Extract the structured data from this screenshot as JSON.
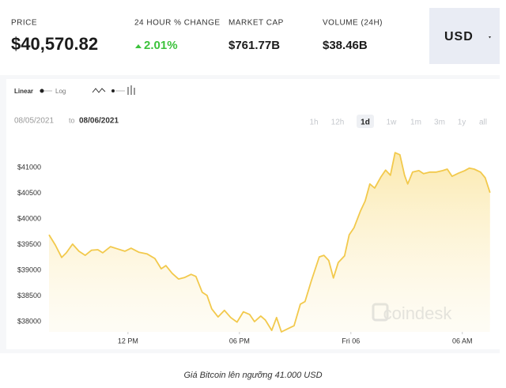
{
  "header": {
    "price_label": "PRICE",
    "price": "$40,570.82",
    "change_label": "24 HOUR % CHANGE",
    "change": "2.01%",
    "market_cap_label": "MARKET CAP",
    "market_cap": "$761.77B",
    "volume_label": "VOLUME (24H)",
    "volume": "$38.46B",
    "currency": "USD"
  },
  "controls": {
    "linear": "Linear",
    "log": "Log",
    "date_from": "08/05/2021",
    "date_to_word": "to",
    "date_to": "08/06/2021",
    "ranges": [
      "1h",
      "12h",
      "1d",
      "1w",
      "1m",
      "3m",
      "1y",
      "all"
    ],
    "active_range": "1d"
  },
  "watermark": "coindesk",
  "caption": "Giá Bitcoin lên ngưỡng 41.000 USD",
  "chart_data": {
    "type": "area",
    "color": "#f2c94c",
    "x": [
      7.75,
      8.09,
      8.43,
      8.68,
      9.02,
      9.36,
      9.7,
      10.04,
      10.38,
      10.64,
      11.06,
      11.4,
      11.83,
      12.17,
      12.6,
      13.02,
      13.45,
      13.79,
      14.04,
      14.38,
      14.72,
      15.06,
      15.4,
      15.66,
      16.0,
      16.26,
      16.51,
      16.85,
      17.19,
      17.53,
      17.87,
      18.21,
      18.55,
      18.81,
      19.15,
      19.4,
      19.74,
      20.0,
      20.26,
      20.6,
      20.94,
      21.28,
      21.53,
      21.87,
      22.3,
      22.55,
      22.81,
      23.06,
      23.32,
      23.66,
      23.91,
      24.17,
      24.51,
      24.77,
      25.02,
      25.28,
      25.62,
      25.87,
      26.13,
      26.38,
      26.64,
      26.89,
      27.06,
      27.32,
      27.66,
      27.91,
      28.26,
      28.6,
      28.94,
      29.19,
      29.45,
      29.79,
      30.13,
      30.38,
      30.64,
      30.98,
      31.23,
      31.49
    ],
    "values": [
      39690,
      39490,
      39250,
      39340,
      39510,
      39370,
      39290,
      39390,
      39400,
      39340,
      39460,
      39420,
      39370,
      39430,
      39350,
      39320,
      39230,
      39030,
      39090,
      38940,
      38830,
      38860,
      38920,
      38880,
      38570,
      38510,
      38250,
      38090,
      38220,
      38080,
      37990,
      38190,
      38140,
      38000,
      38110,
      38030,
      37830,
      38080,
      37800,
      37860,
      37920,
      38340,
      38390,
      38790,
      39260,
      39290,
      39190,
      38850,
      39150,
      39280,
      39690,
      39830,
      40150,
      40350,
      40680,
      40600,
      40820,
      40950,
      40850,
      41290,
      41250,
      40850,
      40680,
      40910,
      40940,
      40880,
      40910,
      40910,
      40940,
      40970,
      40830,
      40890,
      40940,
      40990,
      40970,
      40910,
      40800,
      40510
    ],
    "xlim": [
      7.75,
      31.5
    ],
    "xticks": [
      {
        "value": 12,
        "label": "12 PM"
      },
      {
        "value": 18,
        "label": "06 PM"
      },
      {
        "value": 24,
        "label": "Fri 06"
      },
      {
        "value": 30,
        "label": "06 AM"
      }
    ],
    "ylim": [
      37800,
      41400
    ],
    "yticks": [
      {
        "value": 38000,
        "label": "$38000"
      },
      {
        "value": 38500,
        "label": "$38500"
      },
      {
        "value": 39000,
        "label": "$39000"
      },
      {
        "value": 39500,
        "label": "$39500"
      },
      {
        "value": 40000,
        "label": "$40000"
      },
      {
        "value": 40500,
        "label": "$40500"
      },
      {
        "value": 41000,
        "label": "$41000"
      }
    ]
  }
}
